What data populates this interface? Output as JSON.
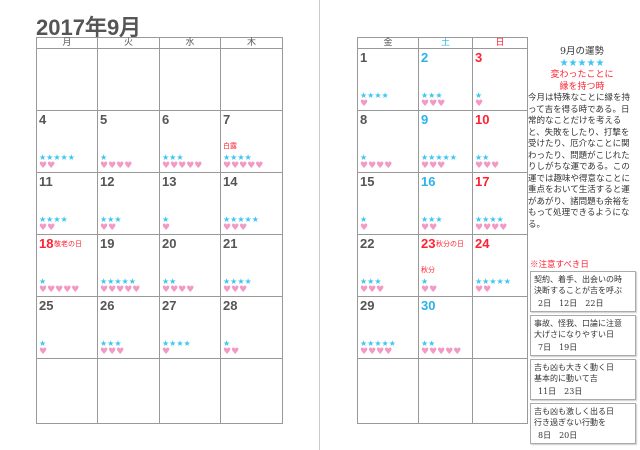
{
  "title": "2017年9月",
  "left_headers": [
    "月",
    "火",
    "水",
    "木"
  ],
  "right_headers": [
    "金",
    "土",
    "日"
  ],
  "left_rows": [
    [
      null,
      null,
      null,
      null
    ],
    [
      {
        "d": "4",
        "s": 5,
        "h": 2
      },
      {
        "d": "5",
        "s": 1,
        "h": 4
      },
      {
        "d": "6",
        "s": 3,
        "h": 5
      },
      {
        "d": "7",
        "s": 4,
        "h": 5,
        "note": "白露"
      }
    ],
    [
      {
        "d": "11",
        "s": 4,
        "h": 2
      },
      {
        "d": "12",
        "s": 3,
        "h": 2
      },
      {
        "d": "13",
        "s": 1,
        "h": 1
      },
      {
        "d": "14",
        "s": 5,
        "h": 3
      }
    ],
    [
      {
        "d": "18",
        "s": 1,
        "h": 5,
        "hol": "敬老の日",
        "red": true
      },
      {
        "d": "19",
        "s": 5,
        "h": 5
      },
      {
        "d": "20",
        "s": 2,
        "h": 4
      },
      {
        "d": "21",
        "s": 4,
        "h": 3
      }
    ],
    [
      {
        "d": "25",
        "s": 1,
        "h": 1
      },
      {
        "d": "26",
        "s": 3,
        "h": 3
      },
      {
        "d": "27",
        "s": 4,
        "h": 1
      },
      {
        "d": "28",
        "s": 1,
        "h": 2
      }
    ],
    [
      null,
      null,
      null,
      null
    ]
  ],
  "right_rows": [
    [
      {
        "d": "1",
        "s": 4,
        "h": 1
      },
      {
        "d": "2",
        "s": 3,
        "h": 3
      },
      {
        "d": "3",
        "s": 1,
        "h": 1
      }
    ],
    [
      {
        "d": "8",
        "s": 1,
        "h": 4
      },
      {
        "d": "9",
        "s": 5,
        "h": 3
      },
      {
        "d": "10",
        "s": 2,
        "h": 3
      }
    ],
    [
      {
        "d": "15",
        "s": 1,
        "h": 1
      },
      {
        "d": "16",
        "s": 3,
        "h": 2
      },
      {
        "d": "17",
        "s": 4,
        "h": 4
      }
    ],
    [
      {
        "d": "22",
        "s": 3,
        "h": 3
      },
      {
        "d": "23",
        "s": 1,
        "h": 2,
        "hol": "秋分の日",
        "note": "秋分"
      },
      {
        "d": "24",
        "s": 5,
        "h": 2
      }
    ],
    [
      {
        "d": "29",
        "s": 5,
        "h": 4
      },
      {
        "d": "30",
        "s": 2,
        "h": 5
      },
      null
    ],
    [
      null,
      null,
      null
    ]
  ],
  "fortune": {
    "heading": "9月の運勢",
    "stars": "★★★★★",
    "subtitle1": "変わったことに",
    "subtitle2": "縁を持つ時",
    "body": "今月は特殊なことに縁を持って吉を得る時である。日常的なことだけを考えると、失敗をしたり、打撃を受けたり、厄介なことに関わったり、問題がこじれたりしがちな運である。この運では趣味や得意なことに重点をおいて生活すると運があがり、諸問題も余裕をもって処理できるようになる。"
  },
  "caution": {
    "heading": "※注意すべき日",
    "boxes": [
      {
        "text1": "契約、着手、出会いの時",
        "text2": "決断することが吉を呼ぶ",
        "days": "2日　12日　22日"
      },
      {
        "text1": "事故、怪我、口論に注意",
        "text2": "大げさになりやすい日",
        "days": "7日　19日"
      },
      {
        "text1": "吉も凶も大きく動く日",
        "text2": "基本的に動いて吉",
        "days": "11日　23日"
      },
      {
        "text1": "吉も凶も激しく出る日",
        "text2": "行き過ぎない行動を",
        "days": "8日　20日"
      }
    ]
  },
  "colors": {
    "star": "#3cc6f0",
    "heart": "#f29ac6",
    "holiday": "#ff2233",
    "saturday": "#2bb3e8"
  }
}
